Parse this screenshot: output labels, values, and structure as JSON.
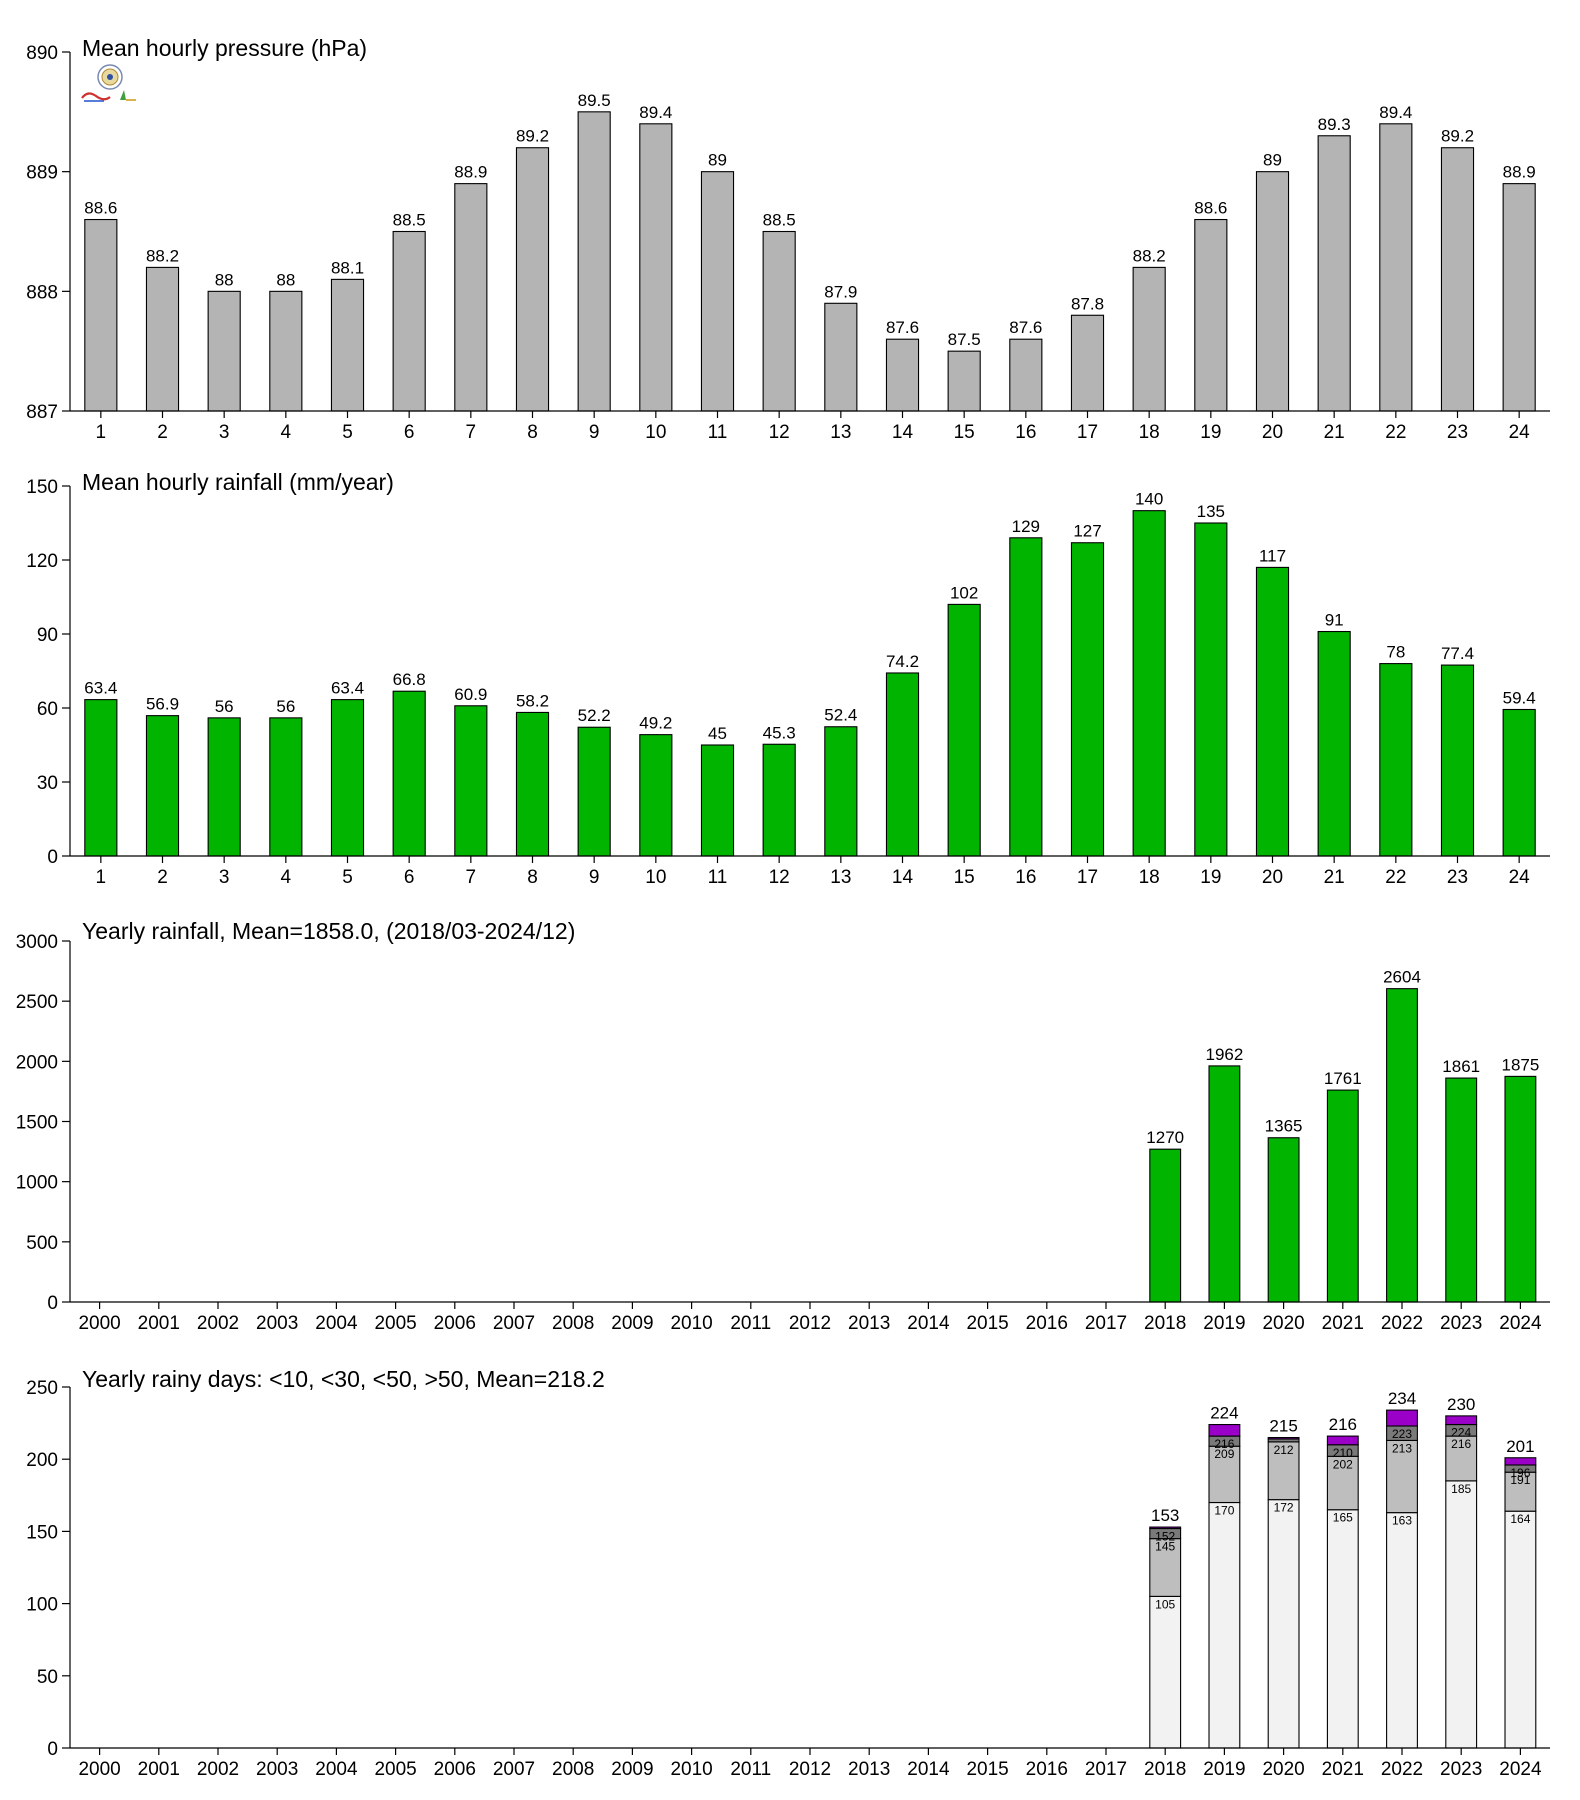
{
  "colors": {
    "pressure": "#b4b4b4",
    "rainfall": "#00b400",
    "rainy_lt10": "#f2f2f2",
    "rainy_lt30": "#bebebe",
    "rainy_lt50": "#7a7a7a",
    "rainy_gt50": "#9a00c8",
    "axis": "#000000"
  },
  "logo": {
    "icon": "station-seal-logo"
  },
  "chart_data": [
    {
      "id": "pressure",
      "type": "bar",
      "title": "Mean hourly pressure (hPa)",
      "xlabel": "",
      "ylabel": "",
      "categories": [
        "1",
        "2",
        "3",
        "4",
        "5",
        "6",
        "7",
        "8",
        "9",
        "10",
        "11",
        "12",
        "13",
        "14",
        "15",
        "16",
        "17",
        "18",
        "19",
        "20",
        "21",
        "22",
        "23",
        "24"
      ],
      "values": [
        888.6,
        888.2,
        888.0,
        888.0,
        888.1,
        888.5,
        888.9,
        889.2,
        889.5,
        889.4,
        889.0,
        888.5,
        887.9,
        887.6,
        887.5,
        887.6,
        887.8,
        888.2,
        888.6,
        889.0,
        889.3,
        889.4,
        889.2,
        888.9
      ],
      "labels": [
        "88.6",
        "88.2",
        "88",
        "88",
        "88.1",
        "88.5",
        "88.9",
        "89.2",
        "89.5",
        "89.4",
        "89",
        "88.5",
        "87.9",
        "87.6",
        "87.5",
        "87.6",
        "87.8",
        "88.2",
        "88.6",
        "89",
        "89.3",
        "89.4",
        "89.2",
        "88.9"
      ],
      "ylim": [
        887,
        890
      ],
      "yticks": [
        "887",
        "888",
        "889",
        "890"
      ],
      "yticks_values": [
        887,
        888,
        889,
        890
      ],
      "grid": false,
      "color": "#b4b4b4"
    },
    {
      "id": "hourly-rainfall",
      "type": "bar",
      "title": "Mean hourly rainfall (mm/year)",
      "xlabel": "",
      "ylabel": "",
      "categories": [
        "1",
        "2",
        "3",
        "4",
        "5",
        "6",
        "7",
        "8",
        "9",
        "10",
        "11",
        "12",
        "13",
        "14",
        "15",
        "16",
        "17",
        "18",
        "19",
        "20",
        "21",
        "22",
        "23",
        "24"
      ],
      "values": [
        63.4,
        56.9,
        56,
        56,
        63.4,
        66.8,
        60.9,
        58.2,
        52.2,
        49.2,
        45,
        45.3,
        52.4,
        74.2,
        102,
        129,
        127,
        140,
        135,
        117,
        91,
        78,
        77.4,
        59.4
      ],
      "labels": [
        "63.4",
        "56.9",
        "56",
        "56",
        "63.4",
        "66.8",
        "60.9",
        "58.2",
        "52.2",
        "49.2",
        "45",
        "45.3",
        "52.4",
        "74.2",
        "102",
        "129",
        "127",
        "140",
        "135",
        "117",
        "91",
        "78",
        "77.4",
        "59.4"
      ],
      "ylim": [
        0,
        150
      ],
      "yticks": [
        "0",
        "30",
        "60",
        "90",
        "120",
        "150"
      ],
      "yticks_values": [
        0,
        30,
        60,
        90,
        120,
        150
      ],
      "grid": false,
      "color": "#00b400"
    },
    {
      "id": "yearly-rainfall",
      "type": "bar",
      "title": "Yearly rainfall, Mean=1858.0, (2018/03-2024/12)",
      "xlabel": "",
      "ylabel": "",
      "categories": [
        "2000",
        "2001",
        "2002",
        "2003",
        "2004",
        "2005",
        "2006",
        "2007",
        "2008",
        "2009",
        "2010",
        "2011",
        "2012",
        "2013",
        "2014",
        "2015",
        "2016",
        "2017",
        "2018",
        "2019",
        "2020",
        "2021",
        "2022",
        "2023",
        "2024"
      ],
      "values": [
        null,
        null,
        null,
        null,
        null,
        null,
        null,
        null,
        null,
        null,
        null,
        null,
        null,
        null,
        null,
        null,
        null,
        null,
        1270,
        1962,
        1365,
        1761,
        2604,
        1861,
        1875
      ],
      "labels": [
        "",
        "",
        "",
        "",
        "",
        "",
        "",
        "",
        "",
        "",
        "",
        "",
        "",
        "",
        "",
        "",
        "",
        "",
        "1270",
        "1962",
        "1365",
        "1761",
        "2604",
        "1861",
        "1875"
      ],
      "ylim": [
        0,
        3000
      ],
      "yticks": [
        "0",
        "500",
        "1000",
        "1500",
        "2000",
        "2500",
        "3000"
      ],
      "yticks_values": [
        0,
        500,
        1000,
        1500,
        2000,
        2500,
        3000
      ],
      "grid": false,
      "color": "#00b400"
    },
    {
      "id": "rainy-days",
      "type": "bar",
      "stacked": true,
      "title": "Yearly rainy days: <10, <30, <50, >50, Mean=218.2",
      "xlabel": "",
      "ylabel": "",
      "categories": [
        "2000",
        "2001",
        "2002",
        "2003",
        "2004",
        "2005",
        "2006",
        "2007",
        "2008",
        "2009",
        "2010",
        "2011",
        "2012",
        "2013",
        "2014",
        "2015",
        "2016",
        "2017",
        "2018",
        "2019",
        "2020",
        "2021",
        "2022",
        "2023",
        "2024"
      ],
      "cumulative": {
        "lt10": [
          null,
          null,
          null,
          null,
          null,
          null,
          null,
          null,
          null,
          null,
          null,
          null,
          null,
          null,
          null,
          null,
          null,
          null,
          105,
          170,
          172,
          165,
          163,
          185,
          164
        ],
        "lt30": [
          null,
          null,
          null,
          null,
          null,
          null,
          null,
          null,
          null,
          null,
          null,
          null,
          null,
          null,
          null,
          null,
          null,
          null,
          145,
          209,
          212,
          202,
          213,
          216,
          191
        ],
        "lt50": [
          null,
          null,
          null,
          null,
          null,
          null,
          null,
          null,
          null,
          null,
          null,
          null,
          null,
          null,
          null,
          null,
          null,
          null,
          152,
          216,
          214,
          210,
          223,
          224,
          196
        ],
        "total": [
          null,
          null,
          null,
          null,
          null,
          null,
          null,
          null,
          null,
          null,
          null,
          null,
          null,
          null,
          null,
          null,
          null,
          null,
          153,
          224,
          215,
          216,
          234,
          230,
          201
        ]
      },
      "labels": {
        "lt10": [
          "",
          "",
          "",
          "",
          "",
          "",
          "",
          "",
          "",
          "",
          "",
          "",
          "",
          "",
          "",
          "",
          "",
          "",
          "105",
          "170",
          "172",
          "165",
          "163",
          "185",
          "164"
        ],
        "lt30": [
          "",
          "",
          "",
          "",
          "",
          "",
          "",
          "",
          "",
          "",
          "",
          "",
          "",
          "",
          "",
          "",
          "",
          "",
          "145",
          "209",
          "212",
          "202",
          "213",
          "216",
          "191"
        ],
        "lt50": [
          "",
          "",
          "",
          "",
          "",
          "",
          "",
          "",
          "",
          "",
          "",
          "",
          "",
          "",
          "",
          "",
          "",
          "",
          "152",
          "216",
          "",
          "210",
          "223",
          "224",
          "196"
        ],
        "total": [
          "",
          "",
          "",
          "",
          "",
          "",
          "",
          "",
          "",
          "",
          "",
          "",
          "",
          "",
          "",
          "",
          "",
          "",
          "153",
          "224",
          "215",
          "216",
          "234",
          "230",
          "201"
        ]
      },
      "ylim": [
        0,
        250
      ],
      "yticks": [
        "0",
        "50",
        "100",
        "150",
        "200",
        "250"
      ],
      "yticks_values": [
        0,
        50,
        100,
        150,
        200,
        250
      ],
      "grid": false
    }
  ]
}
